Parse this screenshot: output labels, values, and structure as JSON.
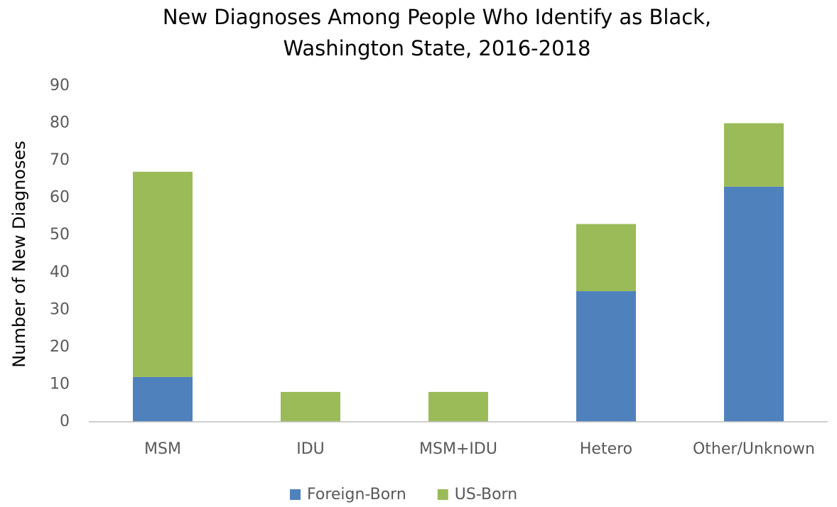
{
  "chart_data": {
    "type": "stacked_bar",
    "title": [
      "New Diagnoses Among People Who Identify as Black,",
      "Washington State, 2016-2018"
    ],
    "y_label": "Number of New Diagnoses",
    "categories": [
      "MSM",
      "IDU",
      "MSM+IDU",
      "Hetero",
      "Other/Unknown"
    ],
    "series": [
      {
        "name": "Foreign-Born",
        "color": "#4f81bd",
        "values": [
          12,
          0,
          0,
          35,
          63
        ]
      },
      {
        "name": "US-Born",
        "color": "#9bbb59",
        "values": [
          55,
          8,
          8,
          18,
          17
        ]
      }
    ],
    "ylim": [
      0,
      90
    ],
    "yticks": [
      0,
      10,
      20,
      30,
      40,
      50,
      60,
      70,
      80,
      90
    ],
    "grid": false,
    "legend": "bottom"
  }
}
